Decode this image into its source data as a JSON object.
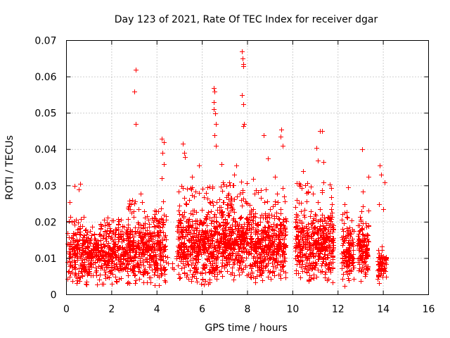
{
  "chart_data": {
    "type": "scatter",
    "title": "Day 123 of 2021, Rate Of TEC Index for receiver dgar",
    "xlabel": "GPS time / hours",
    "ylabel": "ROTI / TECUs",
    "xlim": [
      0,
      16
    ],
    "ylim": [
      0,
      0.07
    ],
    "xticks": [
      0,
      2,
      4,
      6,
      8,
      10,
      12,
      14,
      16
    ],
    "xtick_labels": [
      "0",
      "2",
      "4",
      "6",
      "8",
      "10",
      "12",
      "14",
      "16"
    ],
    "yticks": [
      0,
      0.01,
      0.02,
      0.03,
      0.04,
      0.05,
      0.06,
      0.07
    ],
    "ytick_labels": [
      "0",
      "0.01",
      "0.02",
      "0.03",
      "0.04",
      "0.05",
      "0.06",
      "0.07"
    ],
    "grid": true,
    "marker": "plus",
    "color": "#ff0000",
    "highlight_points": [
      {
        "x": 3.05,
        "y": 0.062
      },
      {
        "x": 3.0,
        "y": 0.056
      },
      {
        "x": 3.05,
        "y": 0.047
      },
      {
        "x": 7.75,
        "y": 0.067
      },
      {
        "x": 7.78,
        "y": 0.065
      },
      {
        "x": 7.8,
        "y": 0.0635
      },
      {
        "x": 7.82,
        "y": 0.063
      },
      {
        "x": 7.75,
        "y": 0.055
      },
      {
        "x": 7.8,
        "y": 0.0525
      },
      {
        "x": 7.85,
        "y": 0.047
      },
      {
        "x": 7.8,
        "y": 0.0465
      },
      {
        "x": 6.5,
        "y": 0.057
      },
      {
        "x": 6.55,
        "y": 0.056
      },
      {
        "x": 6.5,
        "y": 0.053
      },
      {
        "x": 6.52,
        "y": 0.051
      },
      {
        "x": 6.58,
        "y": 0.05
      },
      {
        "x": 6.6,
        "y": 0.047
      },
      {
        "x": 6.55,
        "y": 0.044
      },
      {
        "x": 6.6,
        "y": 0.041
      },
      {
        "x": 11.2,
        "y": 0.045
      },
      {
        "x": 11.3,
        "y": 0.045
      },
      {
        "x": 9.5,
        "y": 0.0455
      },
      {
        "x": 9.45,
        "y": 0.0435
      },
      {
        "x": 9.55,
        "y": 0.041
      },
      {
        "x": 8.7,
        "y": 0.044
      },
      {
        "x": 11.05,
        "y": 0.0405
      },
      {
        "x": 13.05,
        "y": 0.04
      },
      {
        "x": 5.15,
        "y": 0.0415
      },
      {
        "x": 5.2,
        "y": 0.039
      },
      {
        "x": 5.25,
        "y": 0.038
      },
      {
        "x": 4.2,
        "y": 0.043
      },
      {
        "x": 4.3,
        "y": 0.042
      },
      {
        "x": 4.25,
        "y": 0.039
      },
      {
        "x": 4.3,
        "y": 0.036
      },
      {
        "x": 4.2,
        "y": 0.032
      },
      {
        "x": 13.85,
        "y": 0.0355
      },
      {
        "x": 13.9,
        "y": 0.033
      },
      {
        "x": 14.05,
        "y": 0.031
      },
      {
        "x": 13.8,
        "y": 0.025
      },
      {
        "x": 14.0,
        "y": 0.0235
      },
      {
        "x": 12.45,
        "y": 0.0295
      },
      {
        "x": 12.3,
        "y": 0.025
      },
      {
        "x": 12.3,
        "y": 0.0025
      },
      {
        "x": 0.15,
        "y": 0.0255
      },
      {
        "x": 0.35,
        "y": 0.03
      },
      {
        "x": 0.55,
        "y": 0.029
      },
      {
        "x": 0.6,
        "y": 0.0305
      },
      {
        "x": 0.05,
        "y": 0.017
      },
      {
        "x": 7.5,
        "y": 0.0355
      },
      {
        "x": 7.4,
        "y": 0.033
      },
      {
        "x": 7.2,
        "y": 0.031
      },
      {
        "x": 5.55,
        "y": 0.0325
      },
      {
        "x": 5.85,
        "y": 0.0355
      },
      {
        "x": 6.85,
        "y": 0.036
      },
      {
        "x": 8.9,
        "y": 0.0375
      },
      {
        "x": 9.2,
        "y": 0.0325
      },
      {
        "x": 9.6,
        "y": 0.027
      },
      {
        "x": 10.45,
        "y": 0.034
      },
      {
        "x": 10.3,
        "y": 0.03
      },
      {
        "x": 11.35,
        "y": 0.0365
      },
      {
        "x": 11.1,
        "y": 0.037
      },
      {
        "x": 13.35,
        "y": 0.0325
      },
      {
        "x": 13.1,
        "y": 0.0285
      }
    ],
    "dense_regions": [
      {
        "x_start": 0.05,
        "x_end": 2.7,
        "y_min": 0.002,
        "y_max": 0.022,
        "y_center": 0.011,
        "count": 560
      },
      {
        "x_start": 2.7,
        "x_end": 4.4,
        "y_min": 0.002,
        "y_max": 0.028,
        "y_center": 0.012,
        "count": 420
      },
      {
        "x_start": 4.4,
        "x_end": 5.0,
        "y_min": 0.004,
        "y_max": 0.012,
        "y_center": 0.008,
        "count": 8
      },
      {
        "x_start": 4.9,
        "x_end": 6.7,
        "y_min": 0.002,
        "y_max": 0.03,
        "y_center": 0.013,
        "count": 480
      },
      {
        "x_start": 6.7,
        "x_end": 8.3,
        "y_min": 0.003,
        "y_max": 0.032,
        "y_center": 0.014,
        "count": 430
      },
      {
        "x_start": 8.3,
        "x_end": 9.7,
        "y_min": 0.003,
        "y_max": 0.03,
        "y_center": 0.013,
        "count": 380
      },
      {
        "x_start": 10.1,
        "x_end": 11.8,
        "y_min": 0.003,
        "y_max": 0.031,
        "y_center": 0.013,
        "count": 440
      },
      {
        "x_start": 12.15,
        "x_end": 12.7,
        "y_min": 0.003,
        "y_max": 0.024,
        "y_center": 0.011,
        "count": 120
      },
      {
        "x_start": 12.85,
        "x_end": 13.35,
        "y_min": 0.003,
        "y_max": 0.026,
        "y_center": 0.012,
        "count": 130
      },
      {
        "x_start": 13.75,
        "x_end": 14.15,
        "y_min": 0.003,
        "y_max": 0.014,
        "y_center": 0.008,
        "count": 70
      }
    ]
  }
}
